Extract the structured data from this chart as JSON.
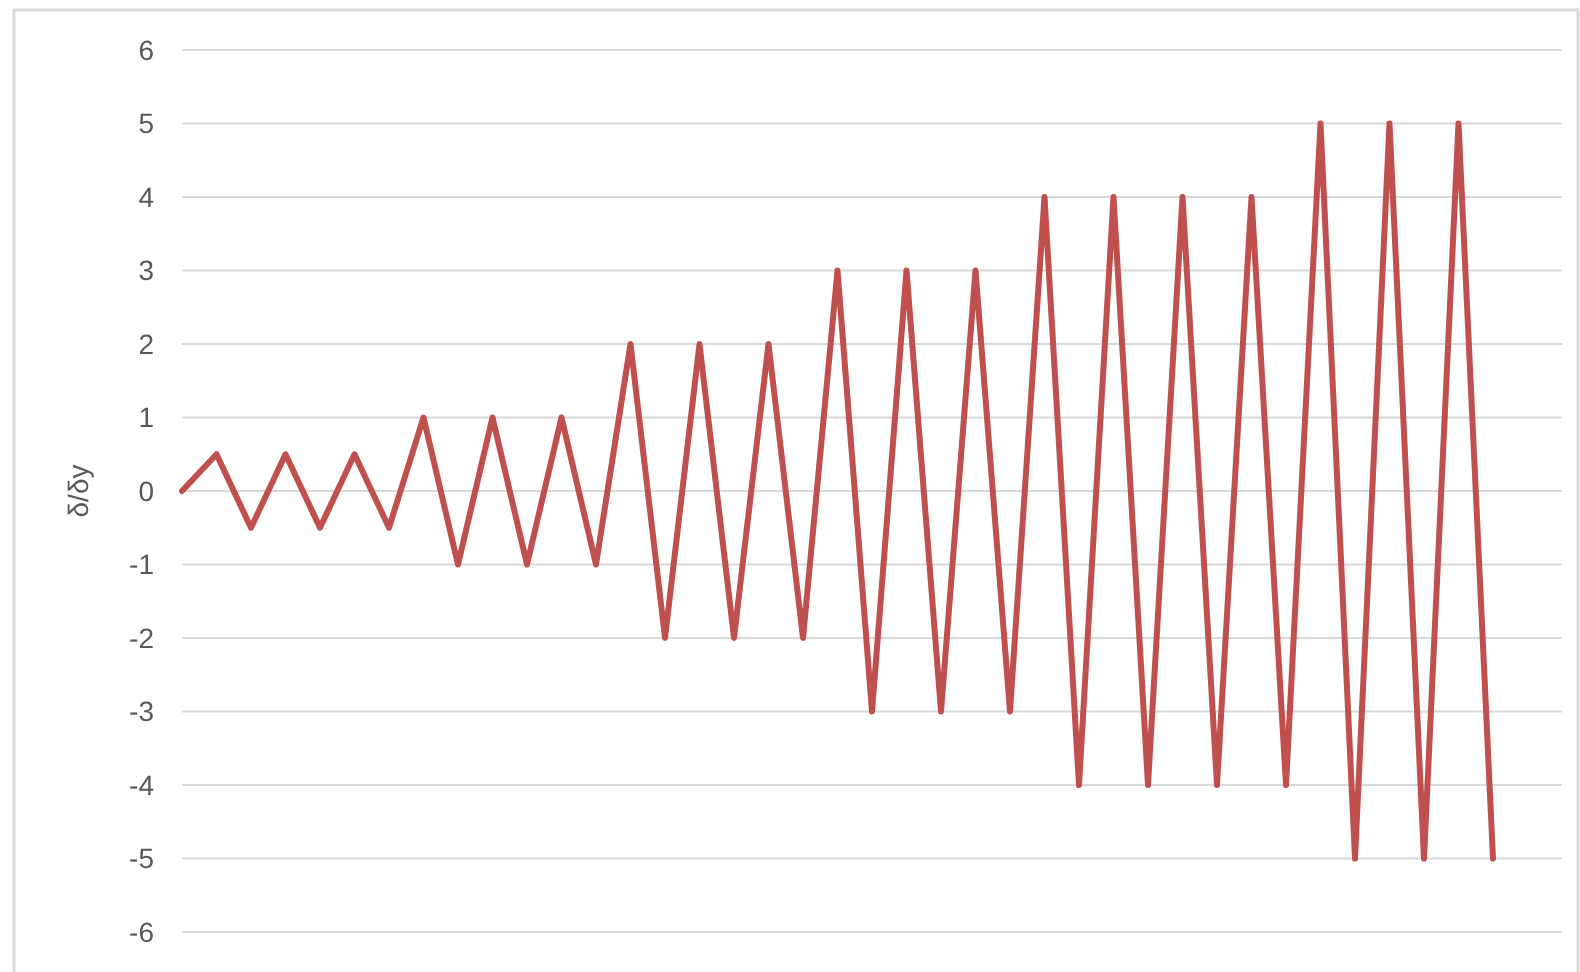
{
  "chart_data": {
    "type": "line",
    "ylabel": "δ/δy",
    "categories": [
      null,
      null,
      null,
      null,
      null,
      null,
      null,
      null,
      null,
      null,
      null,
      null,
      null,
      null,
      null,
      null,
      null,
      null,
      null,
      null,
      null,
      null,
      null,
      null,
      null,
      null,
      null,
      null,
      null,
      null,
      null,
      null,
      null,
      null,
      null,
      null,
      null,
      null,
      null
    ],
    "series": [
      {
        "color": "#c0504d",
        "values": [
          0,
          0.5,
          -0.5,
          0.5,
          -0.5,
          0.5,
          -0.5,
          1,
          -1,
          1,
          -1,
          1,
          -1,
          2,
          -2,
          2,
          -2,
          2,
          -2,
          3,
          -3,
          3,
          -3,
          3,
          -3,
          4,
          -4,
          4,
          -4,
          4,
          -4,
          4,
          -4,
          5,
          -5,
          5,
          -5,
          5,
          -5
        ]
      }
    ],
    "ylim": [
      -6,
      6
    ],
    "yticks": [
      -6,
      -5,
      -4,
      -3,
      -2,
      -1,
      0,
      1,
      2,
      3,
      4,
      5,
      6
    ],
    "grid": "y",
    "tick_labels": "y",
    "marker": "none",
    "line_style": "solid"
  }
}
